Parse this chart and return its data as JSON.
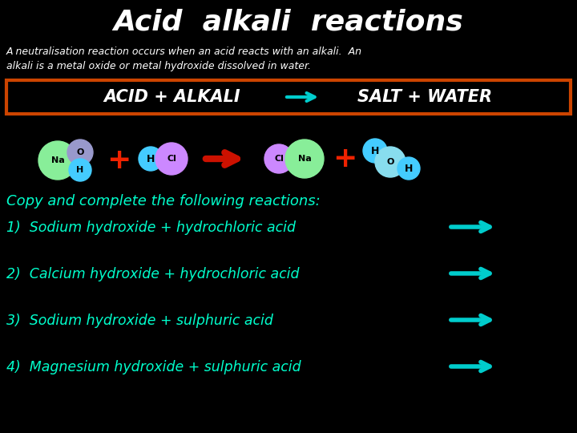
{
  "title": "Acid  alkali  reactions",
  "subtitle_line1": "A neutralisation reaction occurs when an acid reacts with an alkali.  An",
  "subtitle_line2": "alkali is a metal oxide or metal hydroxide dissolved in water.",
  "eq_left": "ACID + ALKALI",
  "eq_right": "SALT + WATER",
  "copy_text": "Copy and complete the following reactions:",
  "reactions": [
    "1)  Sodium hydroxide + hydrochloric acid",
    "2)  Calcium hydroxide + hydrochloric acid",
    "3)  Sodium hydroxide + sulphuric acid",
    "4)  Magnesium hydroxide + sulphuric acid"
  ],
  "reaction_colors": [
    "#00ffcc",
    "#00ffcc",
    "#00ffcc",
    "#00ffcc"
  ],
  "bg_color": "#000000",
  "title_color": "#ffffff",
  "subtitle_color": "#ffffff",
  "eq_color": "#ffffff",
  "copy_color": "#00ffcc",
  "box_edge_color": "#cc4400",
  "arrow_eq_color": "#00cccc",
  "arrow_big_color": "#cc1100",
  "arrow_list_color": "#00cccc",
  "atom_na_color": "#88ee99",
  "atom_o_color": "#9999cc",
  "atom_h_color": "#44ccff",
  "atom_cl_color": "#cc88ff",
  "atom_na2_color": "#88ee99",
  "atom_cl2_color": "#cc88ff",
  "atom_h2_color": "#44ccff",
  "atom_o2_color": "#88ddee",
  "plus_color": "#ee2200"
}
